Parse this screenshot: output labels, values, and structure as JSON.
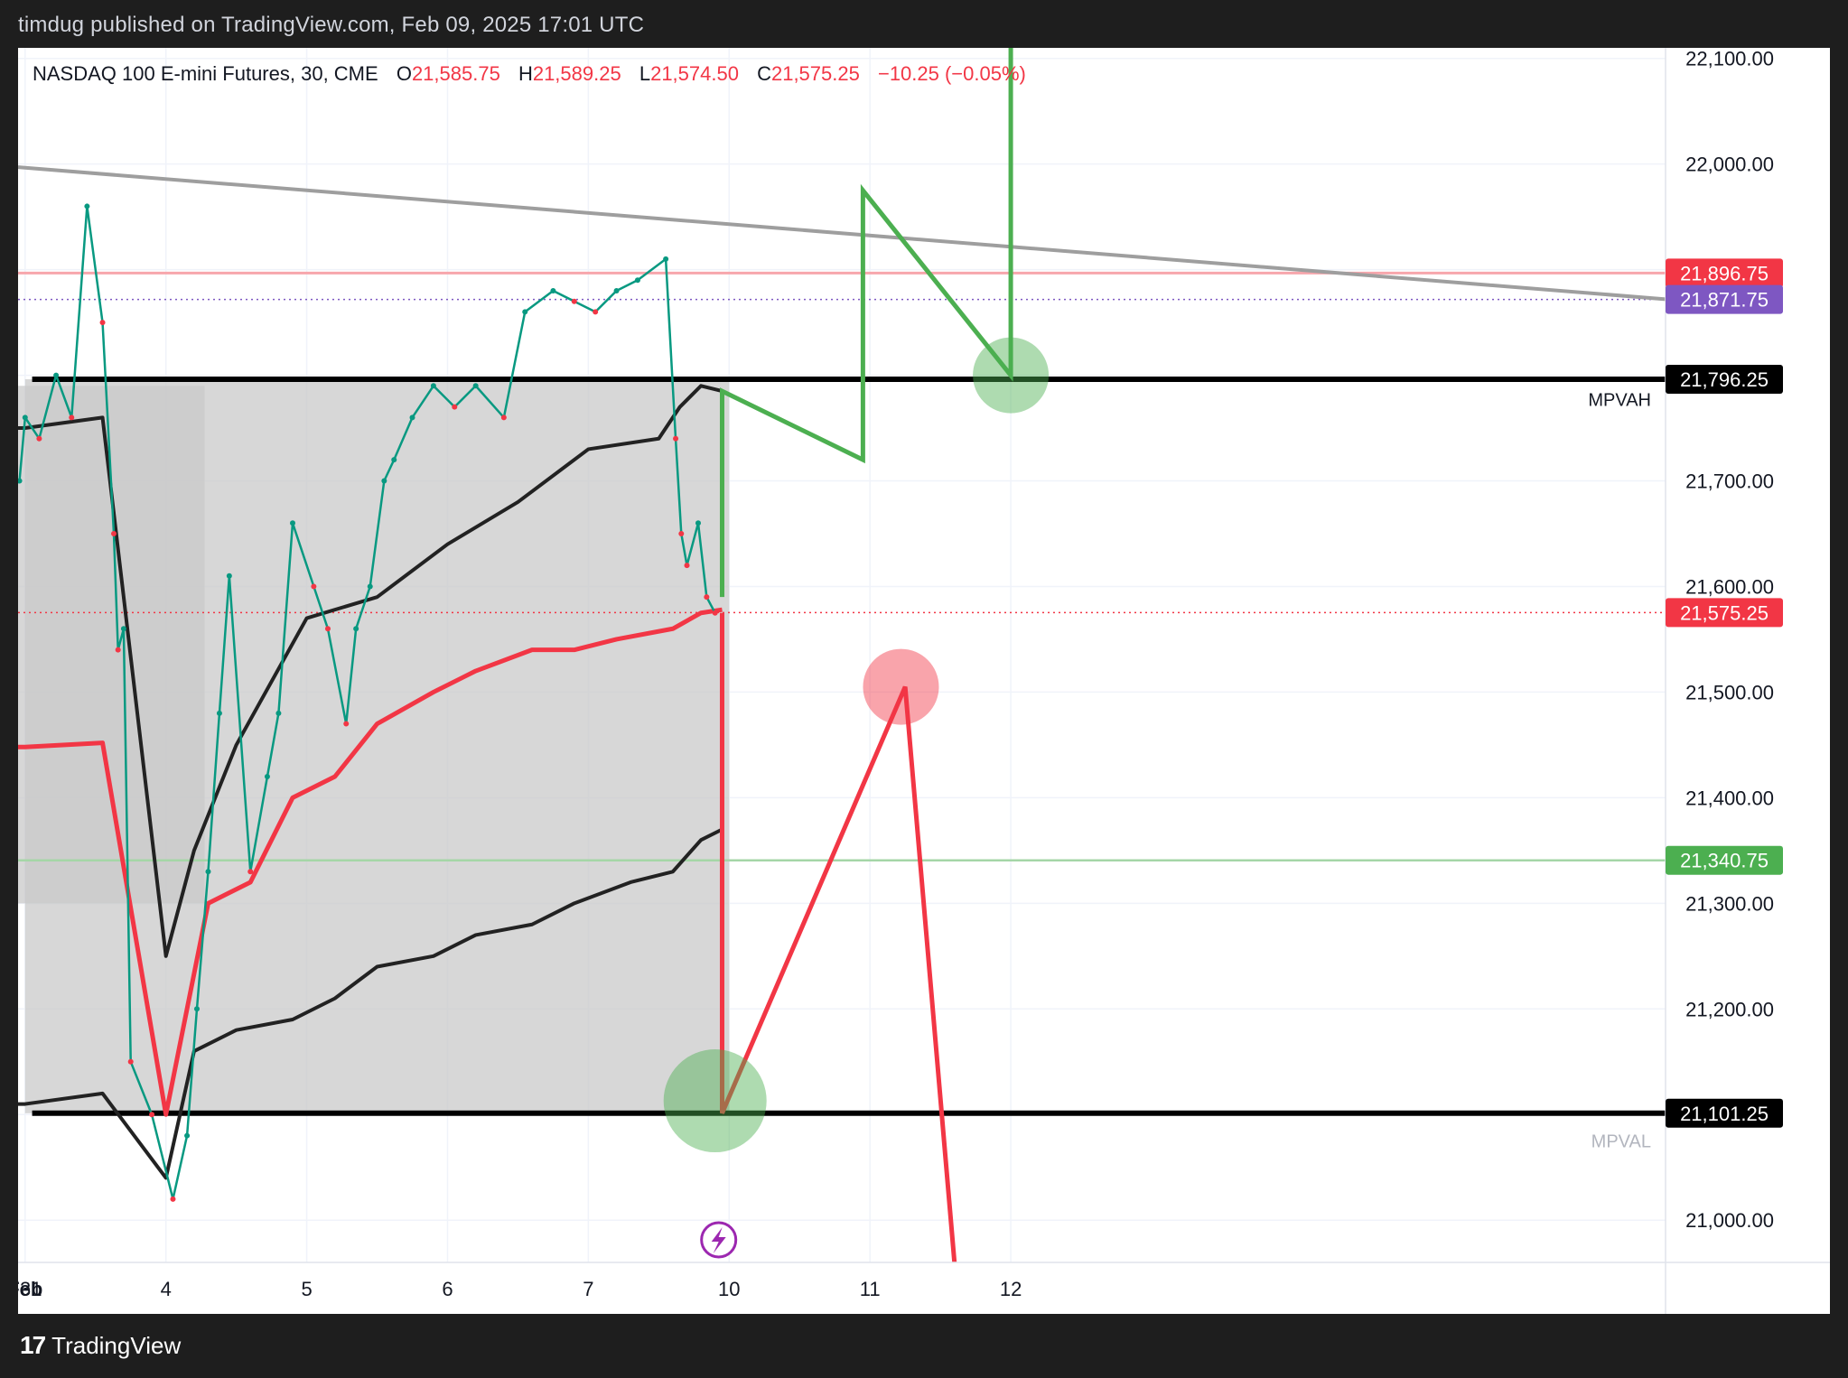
{
  "header": {
    "publisher_text": "timdug published on TradingView.com, Feb 09, 2025 17:01 UTC"
  },
  "legend": {
    "symbol": "NASDAQ 100 E-mini Futures, 30, CME",
    "open_label": "O",
    "open": "21,585.75",
    "high_label": "H",
    "high": "21,589.25",
    "low_label": "L",
    "low": "21,574.50",
    "close_label": "C",
    "close": "21,575.25",
    "change": "−10.25 (−0.05%)"
  },
  "footer": {
    "brand": "TradingView"
  },
  "colors": {
    "up": "#089981",
    "down": "#f23645",
    "green_line": "#4caf50",
    "purple_tag": "#7e57c2",
    "trend_gray": "#9e9e9e"
  },
  "chart_data": {
    "type": "line",
    "title": "NASDAQ 100 E-mini Futures, 30, CME",
    "ylim": [
      20960,
      22110
    ],
    "y_ticks": [
      "21,000.00",
      "21,100.00",
      "21,200.00",
      "21,300.00",
      "21,400.00",
      "21,500.00",
      "21,600.00",
      "21,700.00",
      "21,800.00",
      "21,900.00",
      "22,000.00",
      "22,100.00"
    ],
    "y_tick_values": [
      21000,
      21100,
      21200,
      21300,
      21400,
      21500,
      21600,
      21700,
      21800,
      21900,
      22000,
      22100
    ],
    "x_range": [
      0.95,
      12.65
    ],
    "x_ticks": [
      {
        "label": "31",
        "x": 0.98
      },
      {
        "label": "Feb",
        "x": 1.0
      },
      {
        "label": "4",
        "x": 2.0
      },
      {
        "label": "5",
        "x": 3.0
      },
      {
        "label": "6",
        "x": 4.0
      },
      {
        "label": "7",
        "x": 5.0
      },
      {
        "label": "10",
        "x": 6.0
      },
      {
        "label": "11",
        "x": 7.0
      },
      {
        "label": "12",
        "x": 8.0
      }
    ],
    "price_tags": [
      {
        "label": "21,896.75",
        "value": 21896.75,
        "color": "#f23645"
      },
      {
        "label": "21,871.75",
        "value": 21871.75,
        "color": "#7e57c2"
      },
      {
        "label": "21,796.25",
        "value": 21796.25,
        "color": "#000000"
      },
      {
        "label": "21,575.25",
        "value": 21575.25,
        "color": "#f23645"
      },
      {
        "label": "21,340.75",
        "value": 21340.75,
        "color": "#4caf50"
      },
      {
        "label": "21,101.25",
        "value": 21101.25,
        "color": "#000000"
      }
    ],
    "level_labels": [
      {
        "text": "MPVAH",
        "value": 21778
      },
      {
        "text": "MPVAL",
        "value": 21076
      }
    ],
    "price_series": {
      "x": [
        0.96,
        1.0,
        1.1,
        1.22,
        1.33,
        1.44,
        1.55,
        1.63,
        1.66,
        1.7,
        1.75,
        1.9,
        2.05,
        2.15,
        2.22,
        2.3,
        2.38,
        2.45,
        2.6,
        2.72,
        2.8,
        2.9,
        3.05,
        3.15,
        3.28,
        3.35,
        3.45,
        3.55,
        3.62,
        3.75,
        3.9,
        4.05,
        4.2,
        4.4,
        4.55,
        4.75,
        4.9,
        5.05,
        5.2,
        5.35,
        5.55,
        5.62,
        5.66,
        5.7,
        5.78,
        5.84,
        5.9
      ],
      "y": [
        21700,
        21760,
        21740,
        21800,
        21760,
        21960,
        21850,
        21650,
        21540,
        21560,
        21150,
        21100,
        21020,
        21080,
        21200,
        21330,
        21480,
        21610,
        21330,
        21420,
        21480,
        21660,
        21600,
        21560,
        21470,
        21560,
        21600,
        21700,
        21720,
        21760,
        21790,
        21770,
        21790,
        21760,
        21860,
        21880,
        21870,
        21860,
        21880,
        21890,
        21910,
        21740,
        21650,
        21620,
        21660,
        21590,
        21575
      ]
    },
    "trendline": {
      "x": [
        0.95,
        12.65
      ],
      "y": [
        21997,
        21872
      ]
    },
    "profile_box": {
      "x": [
        1.0,
        6.0
      ],
      "y": [
        21101.25,
        21796.25
      ]
    },
    "left_box": {
      "x": [
        0.95,
        0.96
      ],
      "y": [
        21300,
        21790
      ]
    },
    "bands": [
      {
        "name": "",
        "color": "#222222",
        "x": [
          0.95,
          0.96,
          1.0,
          1.55,
          1.55,
          2.0,
          2.2,
          2.5,
          3.0,
          3.5,
          4.0,
          4.5,
          5.0,
          5.5,
          5.65,
          5.8,
          5.95
        ],
        "y": [
          21750,
          21750,
          21750,
          21760,
          21760,
          21250,
          21350,
          21450,
          21570,
          21590,
          21640,
          21680,
          21730,
          21740,
          21770,
          21790,
          21785
        ]
      },
      {
        "name": "",
        "color": "#f23645",
        "x": [
          0.95,
          1.0,
          1.55,
          1.55,
          2.0,
          2.3,
          2.6,
          2.9,
          3.2,
          3.5,
          3.9,
          4.2,
          4.6,
          4.9,
          5.2,
          5.6,
          5.8,
          5.95
        ],
        "y": [
          21448,
          21448,
          21452,
          21452,
          21100,
          21300,
          21320,
          21400,
          21420,
          21470,
          21500,
          21520,
          21540,
          21540,
          21550,
          21560,
          21575,
          21578
        ]
      },
      {
        "name": "",
        "color": "#222222",
        "x": [
          0.95,
          1.0,
          1.55,
          1.55,
          2.0,
          2.2,
          2.5,
          2.9,
          3.2,
          3.5,
          3.9,
          4.2,
          4.6,
          4.9,
          5.3,
          5.6,
          5.8,
          5.95
        ],
        "y": [
          21110,
          21110,
          21120,
          21120,
          21040,
          21160,
          21180,
          21190,
          21210,
          21240,
          21250,
          21270,
          21280,
          21300,
          21320,
          21330,
          21360,
          21370
        ]
      }
    ],
    "projections": [
      {
        "name": "",
        "color": "#4caf50",
        "x": [
          5.95,
          5.95,
          6.95,
          6.95,
          8.0,
          8.0
        ],
        "y": [
          21590,
          21785,
          21720,
          21975,
          21800,
          22110
        ]
      },
      {
        "name": "",
        "color": "#f23645",
        "x": [
          5.95,
          5.95,
          7.25,
          7.6
        ],
        "y": [
          21575,
          21101.25,
          21505,
          20960
        ]
      }
    ],
    "markers": [
      {
        "x": 8.0,
        "y": 21800,
        "color": "#4caf50"
      },
      {
        "x": 7.22,
        "y": 21505,
        "color": "#f23645"
      },
      {
        "x": 5.9,
        "y": 21113,
        "color": "#4caf50"
      }
    ]
  }
}
